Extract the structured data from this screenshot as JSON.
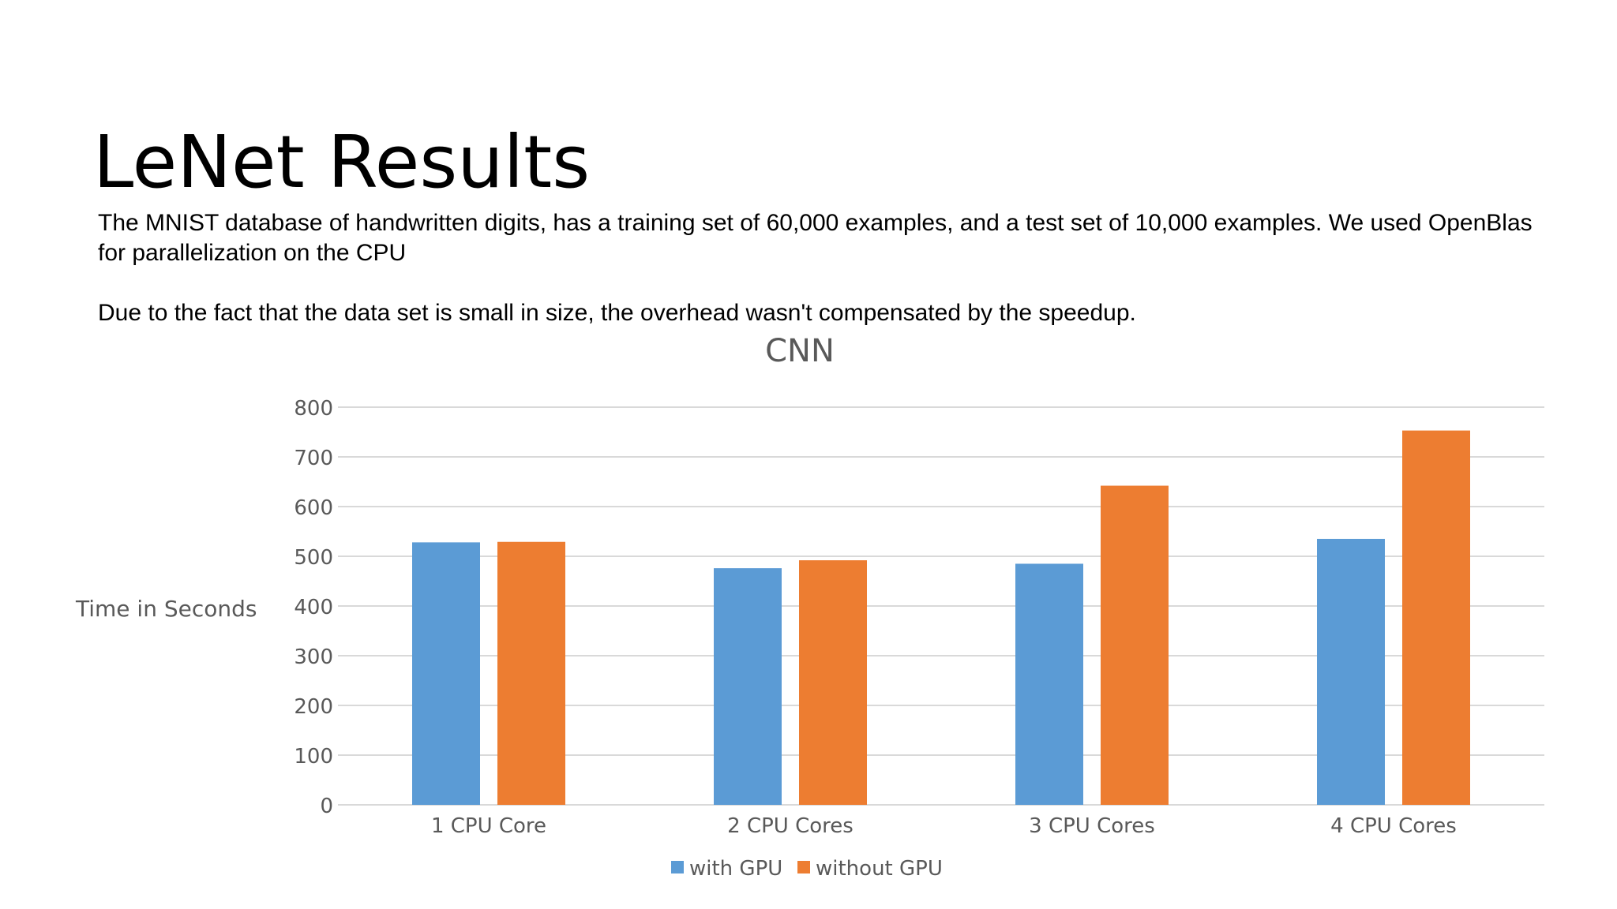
{
  "slide": {
    "title": "LeNet Results",
    "paragraphs": [
      "The MNIST database of handwritten digits, has a training set of 60,000 examples, and a test set of 10,000 examples. We used OpenBlas for parallelization on the CPU",
      "Due to the fact that the data set is small in size, the overhead wasn't compensated by the speedup."
    ]
  },
  "colors": {
    "with_gpu": "#5B9BD5",
    "without_gpu": "#ED7D31",
    "grid": "#D9D9D9",
    "text": "#595959"
  },
  "chart_data": {
    "type": "bar",
    "title": "CNN",
    "xlabel": "",
    "ylabel": "Time in Seconds",
    "categories": [
      "1 CPU Core",
      "2 CPU Cores",
      "3 CPU Cores",
      "4 CPU Cores"
    ],
    "series": [
      {
        "name": "with GPU",
        "values": [
          528,
          476,
          485,
          535
        ]
      },
      {
        "name": "without GPU",
        "values": [
          529,
          492,
          642,
          753
        ]
      }
    ],
    "ylim": [
      0,
      800
    ],
    "yticks": [
      "0",
      "100",
      "200",
      "300",
      "400",
      "500",
      "600",
      "700",
      "800"
    ],
    "grid": true,
    "legend": "bottom"
  }
}
